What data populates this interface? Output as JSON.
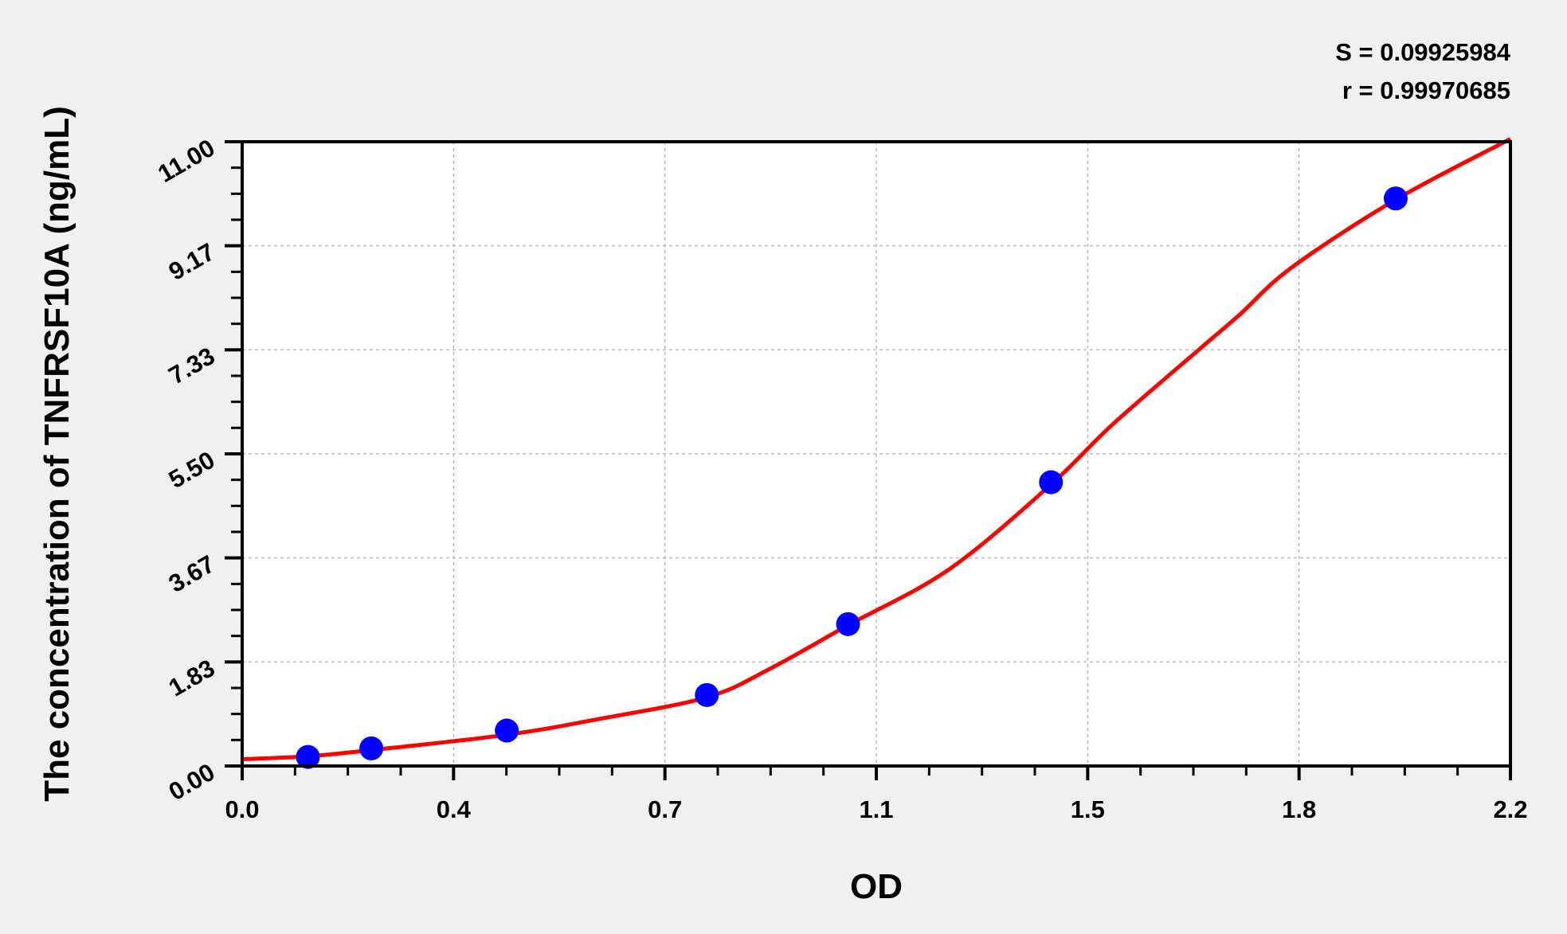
{
  "chart_data": {
    "type": "scatter",
    "title": "",
    "xlabel": "OD",
    "ylabel": "The concentration of TNFRSF10A (ng/mL)",
    "xlim": [
      0,
      2.2
    ],
    "ylim": [
      0,
      11
    ],
    "x_ticks": [
      "0.0",
      "0.4",
      "0.7",
      "1.1",
      "1.5",
      "1.8",
      "2.2"
    ],
    "y_ticks": [
      "0.00",
      "1.83",
      "3.67",
      "5.50",
      "7.33",
      "9.17",
      "11.00"
    ],
    "grid": true,
    "annotations": [
      "S = 0.09925984",
      "r = 0.99970685"
    ],
    "series": [
      {
        "type": "scatter",
        "color": "#0000ff",
        "x": [
          0.114,
          0.224,
          0.459,
          0.806,
          1.051,
          1.403,
          2.001
        ],
        "y": [
          0.16,
          0.31,
          0.625,
          1.25,
          2.5,
          5,
          10
        ]
      },
      {
        "type": "line",
        "color": "#ff0000",
        "x": [
          0,
          0.114,
          0.224,
          0.459,
          0.62,
          0.806,
          0.915,
          1.051,
          1.227,
          1.403,
          1.51,
          1.66,
          1.73,
          1.82,
          2.001,
          2.2
        ],
        "y": [
          0.12,
          0.17,
          0.28,
          0.55,
          0.83,
          1.21,
          1.71,
          2.48,
          3.47,
          4.96,
          6.02,
          7.34,
          7.95,
          8.78,
          9.98,
          11.05
        ]
      }
    ]
  }
}
